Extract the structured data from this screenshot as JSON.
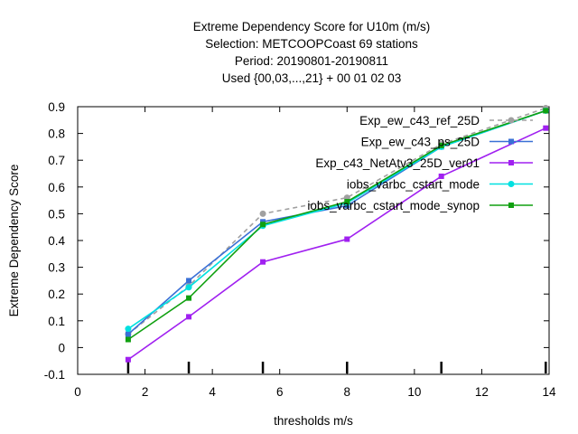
{
  "chart_data": {
    "type": "line",
    "title_lines": [
      "Extreme Dependency Score  for U10m (m/s)",
      "Selection: METCOOPCoast     69 stations",
      "Period: 20190801-20190811",
      "Used {00,03,...,21} + 00 01 02 03"
    ],
    "xlabel": "thresholds m/s",
    "ylabel": "Extreme Dependency Score",
    "xlim": [
      0,
      14
    ],
    "ylim": [
      -0.1,
      0.9
    ],
    "xticks": [
      0,
      2,
      4,
      6,
      8,
      10,
      12,
      14
    ],
    "yticks": [
      -0.1,
      0,
      0.1,
      0.2,
      0.3,
      0.4,
      0.5,
      0.6,
      0.7,
      0.8,
      0.9
    ],
    "x": [
      1.5,
      3.3,
      5.5,
      8.0,
      10.8,
      13.9
    ],
    "legend_position": "top-right",
    "grid": false,
    "series": [
      {
        "name": "Exp_ew_c43_ref_25D",
        "color": "#a0a0a0",
        "dashed": true,
        "marker": "circle",
        "values": [
          0.05,
          0.23,
          0.5,
          0.56,
          0.76,
          0.895
        ]
      },
      {
        "name": "Exp_ew_c43_ps_25D",
        "color": "#3a70d6",
        "dashed": false,
        "marker": "square",
        "values": [
          0.05,
          0.25,
          0.47,
          0.53,
          0.75,
          0.885
        ]
      },
      {
        "name": "Exp_c43_NetAtv3_25D_ver01",
        "color": "#a020f0",
        "dashed": false,
        "marker": "square",
        "values": [
          -0.045,
          0.115,
          0.32,
          0.405,
          0.64,
          0.82
        ]
      },
      {
        "name": "iobs_varbc_cstart_mode",
        "color": "#00e0e0",
        "dashed": false,
        "marker": "circle",
        "values": [
          0.07,
          0.225,
          0.455,
          0.54,
          0.75,
          0.885
        ]
      },
      {
        "name": "iobs_varbc_cstart_mode_synop",
        "color": "#10a010",
        "dashed": false,
        "marker": "square",
        "values": [
          0.03,
          0.185,
          0.46,
          0.545,
          0.755,
          0.885
        ]
      }
    ],
    "bottom_marks_x": [
      1.5,
      3.3,
      5.5,
      8.0,
      10.8,
      13.9
    ]
  }
}
